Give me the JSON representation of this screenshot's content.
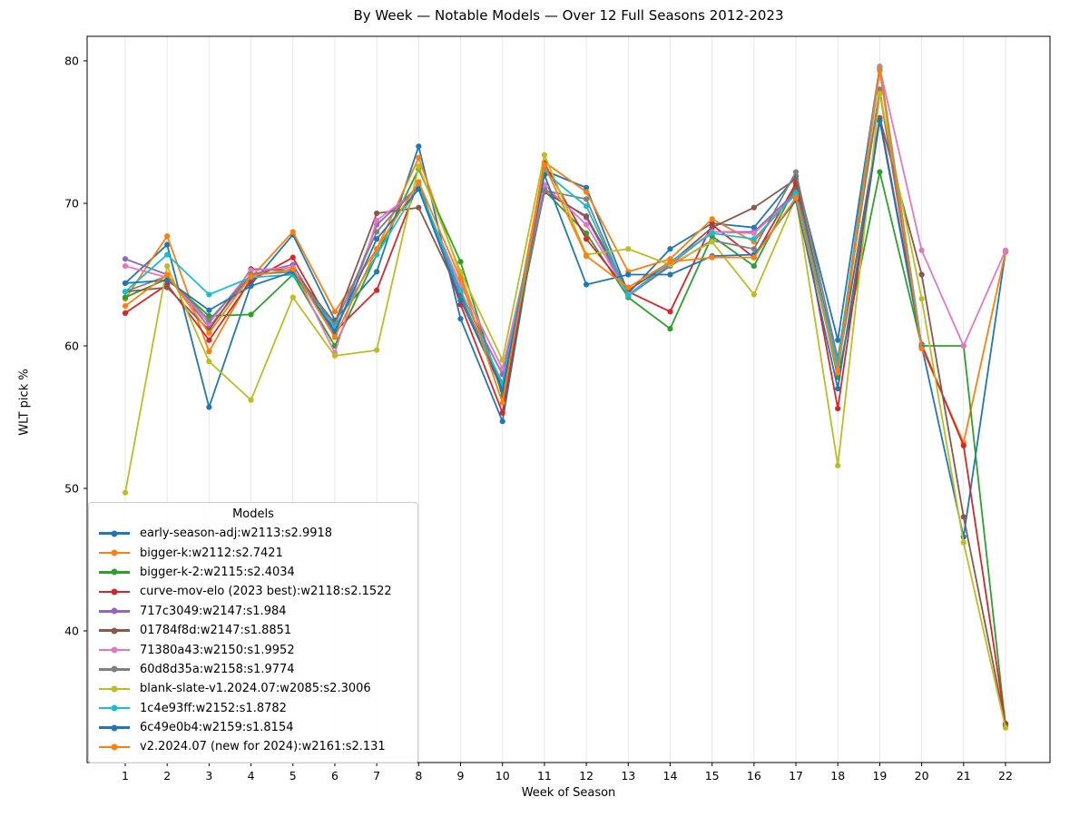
{
  "figure": {
    "title": "By Week — Notable Models — Over 12 Full Seasons 2012-2023",
    "legend_title": "Models"
  },
  "chart_data": {
    "type": "line",
    "title": "By Week — Notable Models — Over 12 Full Seasons 2012-2023",
    "xlabel": "Week of Season",
    "ylabel": "WLT pick %",
    "x": [
      1,
      2,
      3,
      4,
      5,
      6,
      7,
      8,
      9,
      10,
      11,
      12,
      13,
      14,
      15,
      16,
      17,
      18,
      19,
      20,
      21,
      22
    ],
    "xticks": [
      "1",
      "2",
      "3",
      "4",
      "5",
      "6",
      "7",
      "8",
      "9",
      "10",
      "11",
      "12",
      "13",
      "14",
      "15",
      "16",
      "17",
      "18",
      "19",
      "20",
      "21",
      "22"
    ],
    "yticks": [
      "40",
      "50",
      "60",
      "70",
      "80"
    ],
    "ytick_values": [
      40,
      50,
      60,
      70,
      80
    ],
    "ylim": [
      30.8,
      81.7
    ],
    "grid": "vertical-only",
    "grid_color": "#e6e6e6",
    "legend_position": "lower left",
    "marker": "circle",
    "series": [
      {
        "name": "early-season-adj:w2113:s2.9918",
        "color": "#1f77b4",
        "values": [
          64.4,
          67.1,
          55.7,
          64.3,
          67.8,
          61.8,
          65.2,
          74.0,
          61.9,
          54.7,
          72.3,
          71.1,
          63.7,
          66.8,
          68.6,
          68.3,
          71.9,
          60.4,
          79.6,
          60.0,
          46.6,
          66.6
        ]
      },
      {
        "name": "bigger-k:w2112:s2.7421",
        "color": "#ff7f0e",
        "values": [
          63.3,
          67.7,
          59.6,
          64.8,
          68.0,
          62.4,
          66.8,
          73.2,
          65.0,
          56.9,
          72.9,
          70.8,
          65.2,
          66.1,
          68.9,
          67.3,
          70.9,
          58.9,
          79.6,
          59.9,
          53.2,
          66.6
        ]
      },
      {
        "name": "bigger-k-2:w2115:s2.4034",
        "color": "#2ca02c",
        "values": [
          63.4,
          64.7,
          62.1,
          62.2,
          65.0,
          60.0,
          66.4,
          72.4,
          65.9,
          56.5,
          70.9,
          67.9,
          63.4,
          61.2,
          67.7,
          65.6,
          71.2,
          57.8,
          72.2,
          60.0,
          60.0,
          33.3
        ]
      },
      {
        "name": "curve-mov-elo (2023 best):w2118:s2.1522",
        "color": "#d62728",
        "values": [
          62.3,
          64.3,
          60.4,
          64.6,
          66.2,
          61.0,
          63.9,
          71.5,
          62.9,
          55.3,
          72.8,
          67.5,
          63.8,
          62.4,
          68.5,
          66.2,
          71.4,
          55.6,
          76.0,
          60.1,
          53.0,
          33.5
        ]
      },
      {
        "name": "717c3049:w2147:s1.984",
        "color": "#9467bd",
        "values": [
          66.1,
          65.0,
          61.3,
          65.0,
          65.7,
          60.8,
          68.5,
          71.2,
          63.7,
          58.0,
          71.0,
          69.0,
          63.6,
          65.7,
          68.0,
          68.0,
          70.8,
          58.9,
          78.0,
          60.0,
          null,
          null
        ]
      },
      {
        "name": "01784f8d:w2147:s1.8851",
        "color": "#8c564b",
        "values": [
          63.8,
          64.1,
          61.1,
          65.4,
          65.3,
          61.6,
          69.3,
          69.7,
          63.5,
          57.1,
          70.8,
          69.1,
          63.9,
          65.8,
          68.3,
          69.7,
          71.7,
          58.4,
          76.0,
          65.0,
          48.0,
          33.4
        ]
      },
      {
        "name": "71380a43:w2150:s1.9952",
        "color": "#e377c2",
        "values": [
          65.6,
          64.8,
          61.6,
          65.3,
          65.5,
          59.5,
          68.8,
          71.0,
          64.3,
          58.4,
          71.3,
          68.5,
          63.6,
          65.8,
          68.0,
          67.9,
          70.6,
          58.3,
          79.5,
          66.7,
          60.0,
          66.7
        ]
      },
      {
        "name": "60d8d35a:w2158:s1.9774",
        "color": "#7f7f7f",
        "values": [
          63.8,
          64.9,
          61.8,
          65.0,
          65.2,
          61.5,
          68.0,
          71.3,
          63.3,
          57.4,
          70.9,
          70.3,
          63.5,
          65.6,
          67.4,
          66.8,
          72.2,
          59.1,
          77.8,
          60.0,
          null,
          null
        ]
      },
      {
        "name": "blank-slate-v1.2024.07:w2085:s2.3006",
        "color": "#bcbd22",
        "values": [
          49.7,
          65.6,
          58.9,
          56.2,
          63.4,
          59.3,
          59.7,
          72.6,
          65.2,
          59.0,
          73.4,
          66.4,
          66.8,
          65.7,
          67.3,
          63.6,
          70.4,
          51.6,
          77.7,
          63.3,
          46.2,
          33.2
        ]
      },
      {
        "name": "1c4e93ff:w2152:s1.8782",
        "color": "#17becf",
        "values": [
          63.8,
          66.4,
          63.6,
          64.8,
          65.0,
          61.3,
          66.4,
          71.2,
          63.9,
          57.3,
          72.2,
          69.8,
          63.5,
          65.9,
          67.9,
          67.5,
          70.7,
          58.7,
          79.4,
          60.0,
          null,
          null
        ]
      },
      {
        "name": "6c49e0b4:w2159:s1.8154",
        "color": "#1f77b4",
        "values": [
          64.4,
          64.6,
          62.5,
          64.2,
          65.2,
          61.0,
          67.5,
          71.0,
          63.2,
          56.9,
          72.0,
          64.3,
          65.0,
          65.0,
          66.3,
          66.4,
          70.2,
          57.0,
          75.8,
          59.9,
          null,
          null
        ]
      },
      {
        "name": "v2.2024.07 (new for 2024):w2161:s2.131",
        "color": "#ff7f0e",
        "values": [
          62.8,
          65.0,
          60.9,
          64.9,
          65.4,
          60.6,
          66.8,
          71.5,
          64.7,
          56.0,
          72.7,
          66.3,
          64.1,
          65.9,
          66.2,
          66.2,
          70.4,
          58.1,
          79.3,
          59.8,
          null,
          null
        ]
      }
    ]
  }
}
